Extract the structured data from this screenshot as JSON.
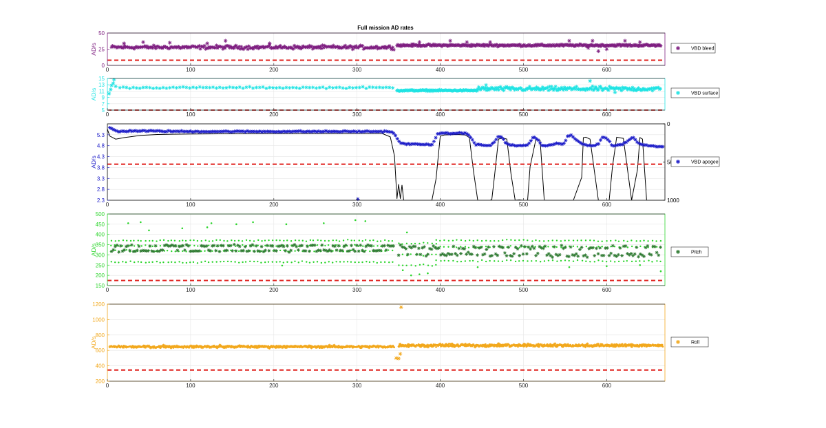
{
  "figure": {
    "title": "Full mission AD rates"
  },
  "chart_data": [
    {
      "type": "scatter",
      "id": "bleed",
      "ylabel": "AD/s",
      "color": "#7e1e80",
      "xlim": [
        0,
        670
      ],
      "ylim": [
        0,
        50
      ],
      "xticks": [
        0,
        100,
        200,
        300,
        400,
        500,
        600
      ],
      "yticks": [
        0,
        25,
        50
      ],
      "legend": "VBD bleed",
      "marker": "star",
      "threshold": 8,
      "segments": [
        {
          "x": [
            5,
            345
          ],
          "center": 28,
          "spread": 4,
          "step": 1.3
        },
        {
          "x": [
            348,
            665
          ],
          "center": 31,
          "spread": 2.5,
          "step": 1.0
        }
      ],
      "outliers": [
        [
          20,
          34
        ],
        [
          43,
          36
        ],
        [
          75,
          35
        ],
        [
          120,
          34
        ],
        [
          142,
          38
        ],
        [
          195,
          34
        ],
        [
          375,
          36
        ],
        [
          412,
          38
        ],
        [
          432,
          36
        ],
        [
          460,
          36
        ],
        [
          555,
          38
        ],
        [
          583,
          38
        ],
        [
          622,
          38
        ],
        [
          640,
          36
        ],
        [
          590,
          22
        ],
        [
          600,
          25
        ],
        [
          578,
          27
        ]
      ]
    },
    {
      "type": "scatter",
      "id": "surface",
      "ylabel": "AD/s",
      "color": "#1fe3e3",
      "xlim": [
        0,
        670
      ],
      "ylim": [
        5,
        15
      ],
      "xticks": [
        0,
        100,
        200,
        300,
        400,
        500,
        600
      ],
      "yticks": [
        5,
        7,
        9,
        11,
        13,
        15
      ],
      "legend": "VBD surface",
      "marker": "star",
      "threshold": 5,
      "segments": [
        {
          "x": [
            15,
            345
          ],
          "center": 12.1,
          "spread": 0.35,
          "step": 4
        },
        {
          "x": [
            348,
            445
          ],
          "center": 11.2,
          "spread": 0.3,
          "step": 0.8
        },
        {
          "x": [
            445,
            665
          ],
          "center": 11.7,
          "spread": 1.0,
          "step": 1.2
        }
      ],
      "outliers": [
        [
          2,
          10.2
        ],
        [
          4,
          11.5
        ],
        [
          5,
          12.8
        ],
        [
          7,
          13.5
        ],
        [
          8,
          14.6
        ],
        [
          10,
          12.5
        ],
        [
          580,
          14.2
        ],
        [
          610,
          10.6
        ],
        [
          455,
          12.9
        ]
      ]
    },
    {
      "type": "scatter",
      "id": "apogee",
      "ylabel": "AD/s",
      "color": "#1b1bc8",
      "xlim": [
        0,
        670
      ],
      "ylim": [
        2.3,
        5.8
      ],
      "xticks": [
        0,
        100,
        200,
        300,
        400,
        500,
        600
      ],
      "yticks": [
        2.3,
        2.8,
        3.3,
        3.8,
        4.3,
        4.8,
        5.3
      ],
      "legend": "VBD apogee",
      "marker": "star",
      "threshold": 3.95,
      "right_axis": {
        "ylim": [
          0,
          1000
        ],
        "yticks": [
          0,
          500,
          1000
        ]
      },
      "depth": {
        "x": [
          0,
          3,
          10,
          20,
          40,
          60,
          80,
          100,
          150,
          200,
          250,
          300,
          330,
          340,
          345,
          348,
          350,
          352,
          354,
          356,
          365,
          380,
          390,
          395,
          400,
          405,
          420,
          430,
          435,
          440,
          445,
          448,
          450,
          460,
          462,
          465,
          470,
          475,
          480,
          485,
          490,
          495,
          500,
          505,
          508,
          515,
          520,
          525,
          530,
          535,
          550,
          560,
          570,
          572,
          575,
          580,
          590,
          600,
          603,
          607,
          612,
          620,
          630,
          637,
          640,
          643,
          648,
          655,
          668
        ],
        "depth": [
          70,
          160,
          200,
          180,
          150,
          140,
          135,
          132,
          130,
          127,
          126,
          125,
          125,
          170,
          420,
          980,
          790,
          980,
          800,
          1000,
          1000,
          1000,
          1000,
          720,
          160,
          145,
          140,
          145,
          180,
          620,
          1000,
          1000,
          1000,
          1000,
          990,
          700,
          200,
          185,
          200,
          650,
          1000,
          995,
          1000,
          1000,
          560,
          200,
          215,
          1000,
          1000,
          1000,
          1000,
          1000,
          700,
          180,
          175,
          200,
          1000,
          1000,
          1000,
          560,
          175,
          190,
          1000,
          600,
          180,
          200,
          1000,
          1000,
          1000
        ]
      },
      "stars": {
        "x": [
          3,
          12,
          30,
          100,
          200,
          300,
          330,
          340,
          345,
          352,
          360,
          385,
          390,
          397,
          430,
          437,
          442,
          460,
          466,
          470,
          474,
          478,
          484,
          492,
          505,
          512,
          517,
          522,
          528,
          540,
          548,
          553,
          557,
          562,
          572,
          585,
          590,
          595,
          600,
          607,
          617,
          625,
          632,
          637,
          642,
          650,
          668
        ],
        "y": [
          5.62,
          5.45,
          5.48,
          5.45,
          5.45,
          5.45,
          5.45,
          5.45,
          5.35,
          4.9,
          4.88,
          4.85,
          4.85,
          5.35,
          5.38,
          5.2,
          4.85,
          4.8,
          5.0,
          5.25,
          5.2,
          4.95,
          4.82,
          4.8,
          4.82,
          5.2,
          5.1,
          4.8,
          4.78,
          4.92,
          4.85,
          5.2,
          5.3,
          5.1,
          4.85,
          4.8,
          4.88,
          5.2,
          5.15,
          4.78,
          4.85,
          5.0,
          5.2,
          4.95,
          4.85,
          4.8,
          4.75
        ],
        "spread": 0.04
      },
      "outliers": [
        [
          301,
          2.35
        ]
      ]
    },
    {
      "type": "scatter",
      "id": "pitch",
      "ylabel": "AD/s",
      "color": "#2cd52c",
      "color_dark": "#2f7a32",
      "xlim": [
        0,
        670
      ],
      "ylim": [
        150,
        500
      ],
      "xticks": [
        0,
        100,
        200,
        300,
        400,
        500,
        600
      ],
      "yticks": [
        150,
        200,
        250,
        300,
        350,
        400,
        450,
        500
      ],
      "legend": "Pitch",
      "marker": "star",
      "threshold": 175,
      "bands_light": [
        {
          "x": [
            5,
            345
          ],
          "levels": [
            265,
            320,
            345,
            370
          ],
          "step": 4.5
        },
        {
          "x": [
            350,
            395
          ],
          "levels": [
            250,
            300,
            355
          ],
          "step": 5
        },
        {
          "x": [
            395,
            665
          ],
          "levels": [
            270,
            340,
            370
          ],
          "step": 5
        }
      ],
      "bands_dark": [
        {
          "x": [
            5,
            345
          ],
          "levels": [
            320,
            345
          ],
          "spread": 8,
          "step": 2.2
        },
        {
          "x": [
            350,
            665
          ],
          "levels": [
            300,
            335
          ],
          "spread": 15,
          "step": 2.2
        }
      ],
      "outliers": [
        [
          25,
          455
        ],
        [
          40,
          460
        ],
        [
          125,
          455
        ],
        [
          155,
          450
        ],
        [
          175,
          460
        ],
        [
          215,
          450
        ],
        [
          260,
          455
        ],
        [
          298,
          470
        ],
        [
          310,
          465
        ],
        [
          360,
          410
        ],
        [
          365,
          200
        ],
        [
          375,
          205
        ],
        [
          385,
          210
        ],
        [
          355,
          225
        ],
        [
          210,
          248
        ],
        [
          445,
          240
        ],
        [
          555,
          240
        ],
        [
          600,
          245
        ],
        [
          640,
          250
        ],
        [
          665,
          220
        ],
        [
          120,
          435
        ],
        [
          50,
          420
        ],
        [
          90,
          430
        ]
      ]
    },
    {
      "type": "scatter",
      "id": "roll",
      "ylabel": "AD/s",
      "color": "#f2a81d",
      "xlim": [
        0,
        670
      ],
      "ylim": [
        200,
        1200
      ],
      "xticks": [
        0,
        100,
        200,
        300,
        400,
        500,
        600
      ],
      "yticks": [
        200,
        400,
        600,
        800,
        1000,
        1200
      ],
      "legend": "Roll",
      "marker": "star",
      "threshold": 345,
      "segments": [
        {
          "x": [
            3,
            345
          ],
          "center": 648,
          "spread": 22,
          "step": 0.7
        },
        {
          "x": [
            350,
            668
          ],
          "center": 665,
          "spread": 28,
          "step": 0.6
        }
      ],
      "outliers": [
        [
          353,
          1160
        ],
        [
          350,
          495
        ],
        [
          347,
          500
        ],
        [
          352,
          555
        ]
      ]
    }
  ]
}
